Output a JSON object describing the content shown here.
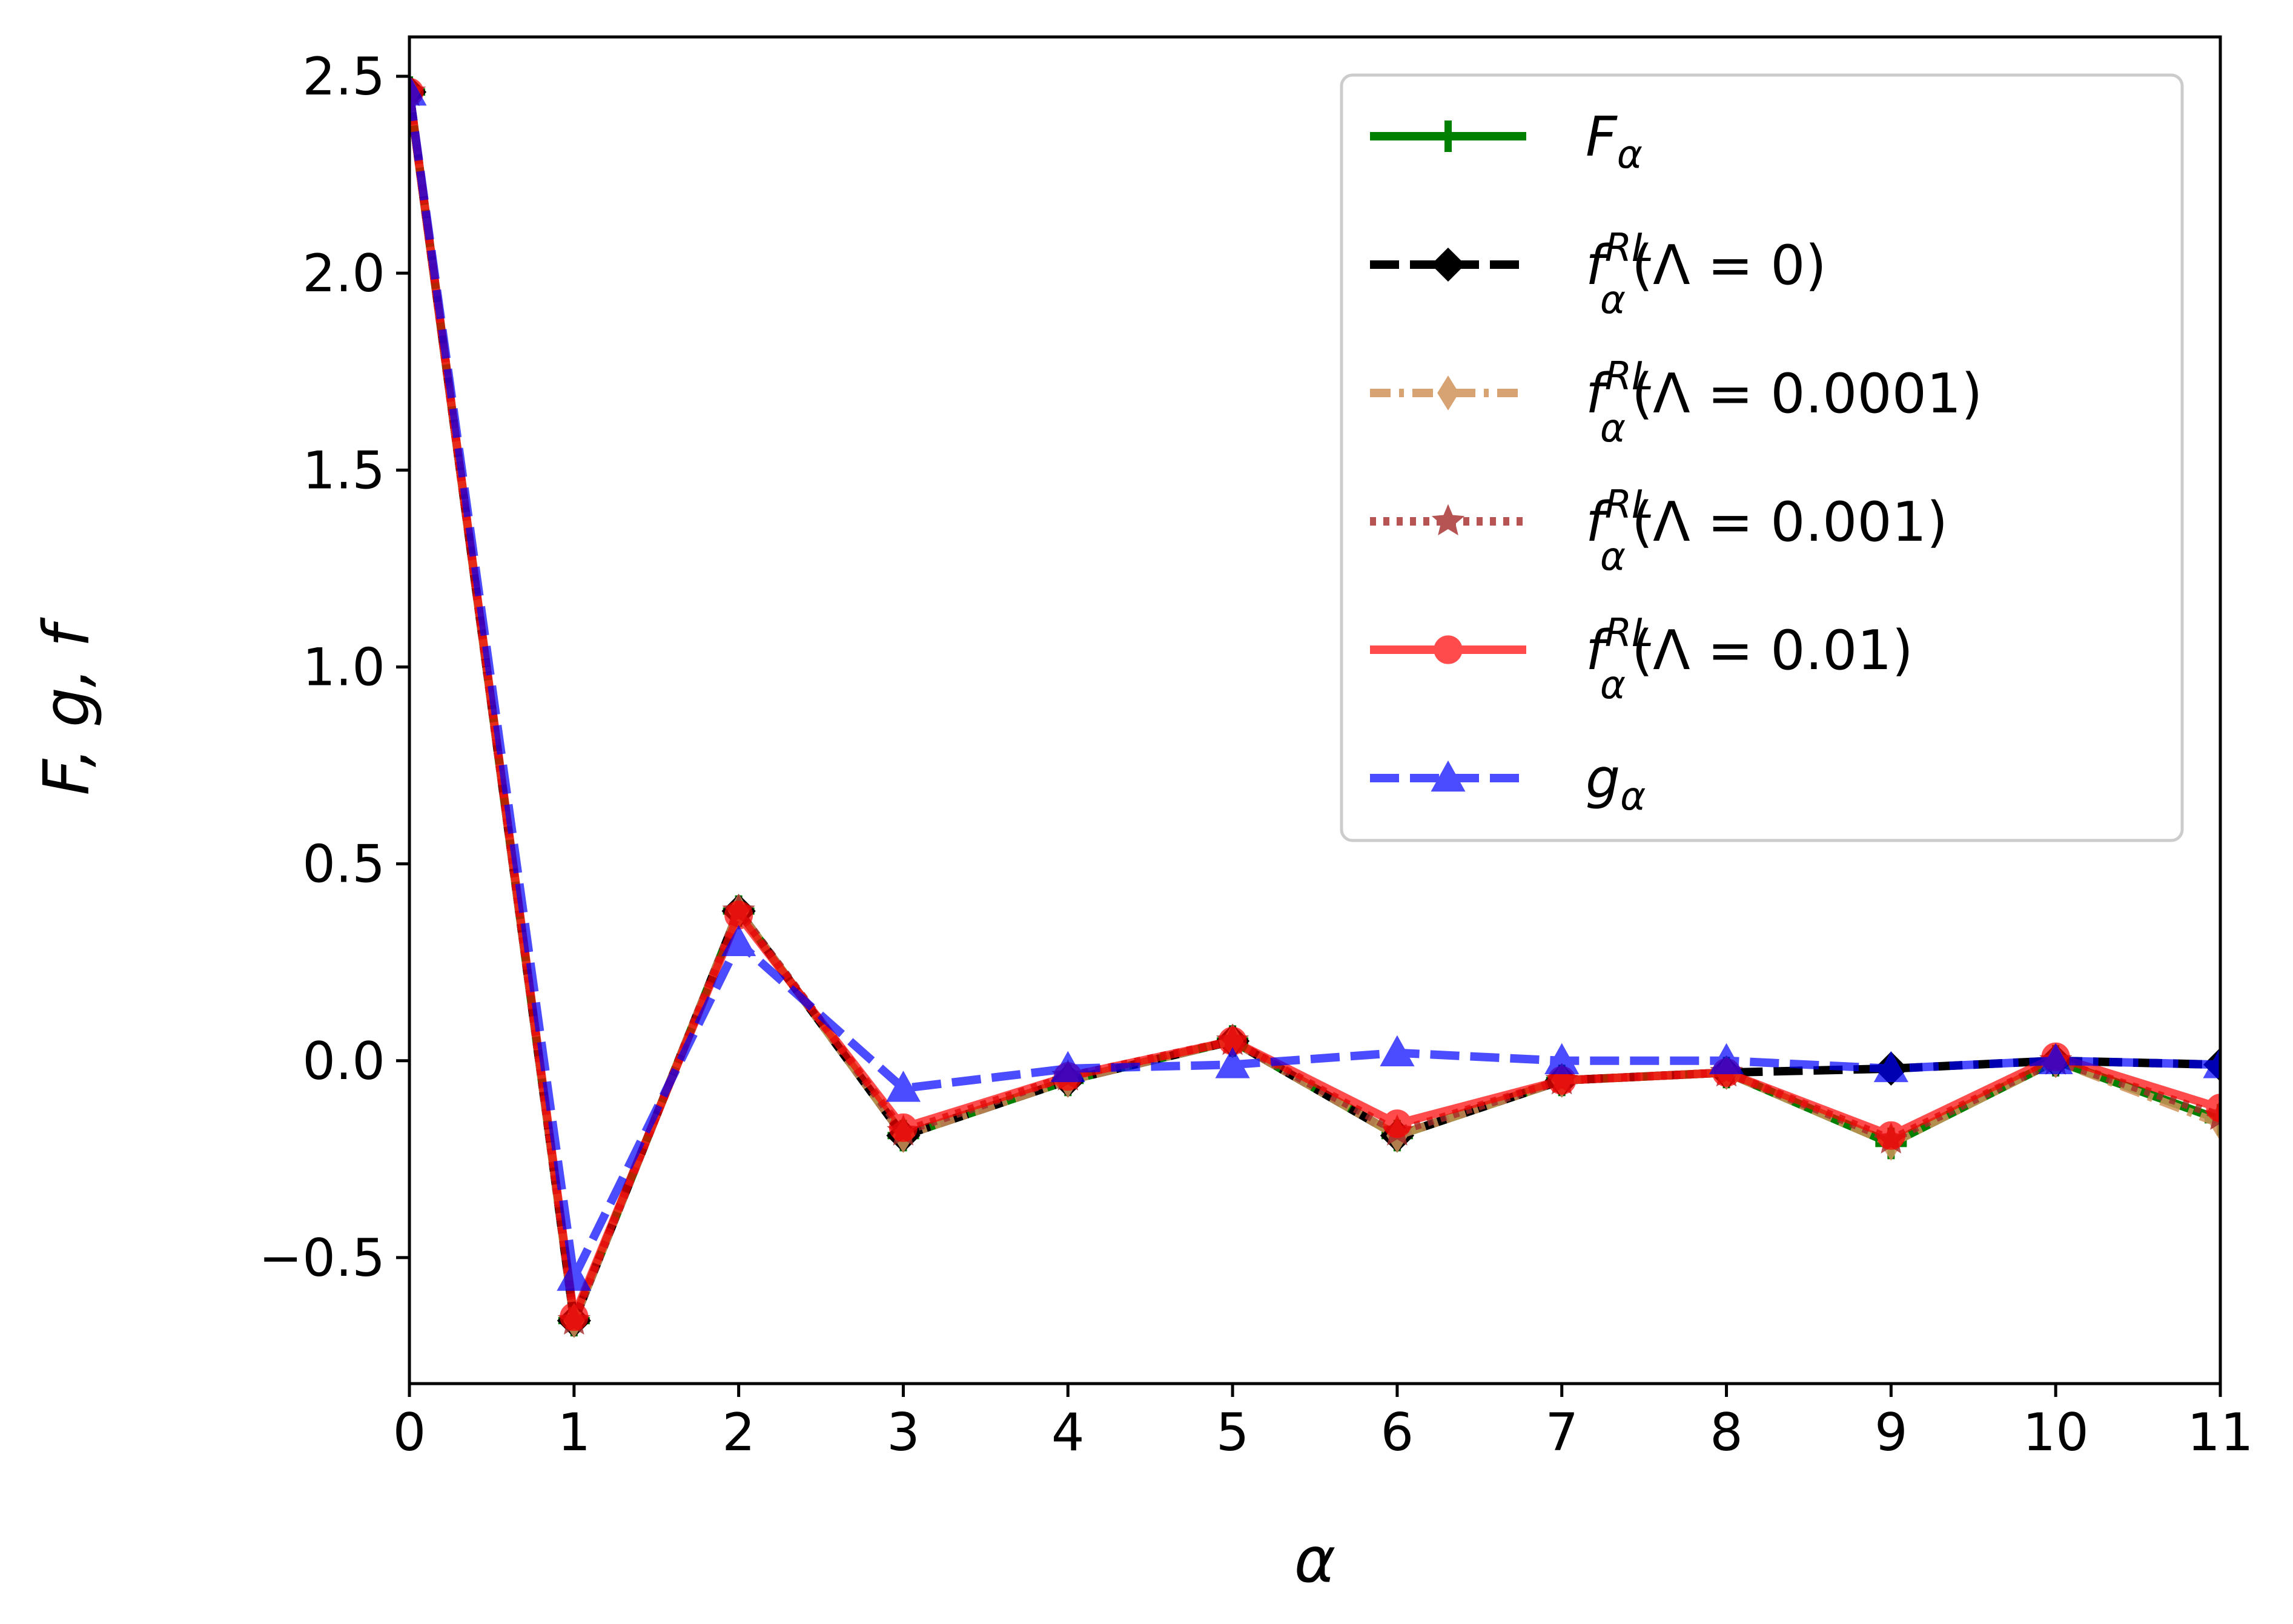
{
  "chart_data": {
    "type": "line",
    "xlabel": "α",
    "ylabel": "F, g, f",
    "xlim": [
      0,
      11
    ],
    "ylim": [
      -0.82,
      2.6
    ],
    "xticks": [
      0,
      1,
      2,
      3,
      4,
      5,
      6,
      7,
      8,
      9,
      10,
      11
    ],
    "yticks": [
      -0.5,
      0.0,
      0.5,
      1.0,
      1.5,
      2.0,
      2.5
    ],
    "ytick_labels": [
      "−0.5",
      "0.0",
      "0.5",
      "1.0",
      "1.5",
      "2.0",
      "2.5"
    ],
    "grid": false,
    "legend_position": "upper-right",
    "x": [
      0,
      1,
      2,
      3,
      4,
      5,
      6,
      7,
      8,
      9,
      10,
      11
    ],
    "series": [
      {
        "name": "F_α",
        "legend_base": "F",
        "legend_sub": "α",
        "legend_sup": "",
        "legend_rest": "",
        "color": "#008000",
        "style": "solid",
        "marker": "plus",
        "opacity": 1.0,
        "values": [
          2.46,
          -0.66,
          0.38,
          -0.19,
          -0.05,
          0.05,
          -0.19,
          -0.05,
          -0.03,
          -0.21,
          0.0,
          -0.15
        ]
      },
      {
        "name": "f_α^RL(Λ = 0)",
        "legend_base": "f",
        "legend_sub": "α",
        "legend_sup": "RL",
        "legend_rest": "(Λ = 0)",
        "color": "#000000",
        "style": "dashed",
        "marker": "diamond",
        "opacity": 1.0,
        "values": [
          2.46,
          -0.66,
          0.38,
          -0.19,
          -0.05,
          0.05,
          -0.19,
          -0.05,
          -0.03,
          -0.02,
          0.0,
          -0.01
        ]
      },
      {
        "name": "f_α^RL(Λ = 0.0001)",
        "legend_base": "f",
        "legend_sub": "α",
        "legend_sup": "RL",
        "legend_rest": "(Λ = 0.0001)",
        "color": "#d2935a",
        "style": "dashdot",
        "marker": "thin-diamond",
        "opacity": 0.85,
        "values": [
          2.46,
          -0.66,
          0.38,
          -0.19,
          -0.05,
          0.05,
          -0.19,
          -0.05,
          -0.03,
          -0.21,
          0.0,
          -0.16
        ]
      },
      {
        "name": "f_α^RL(Λ = 0.001)",
        "legend_base": "f",
        "legend_sub": "α",
        "legend_sup": "RL",
        "legend_rest": "(Λ = 0.001)",
        "color": "#a52a2a",
        "style": "dotted",
        "marker": "star",
        "opacity": 0.8,
        "values": [
          2.46,
          -0.66,
          0.38,
          -0.18,
          -0.04,
          0.05,
          -0.18,
          -0.05,
          -0.03,
          -0.2,
          0.0,
          -0.14
        ]
      },
      {
        "name": "f_α^RL(Λ = 0.01)",
        "legend_base": "f",
        "legend_sub": "α",
        "legend_sup": "RL",
        "legend_rest": "(Λ = 0.01)",
        "color": "#ff0000",
        "style": "solid",
        "marker": "circle",
        "opacity": 0.7,
        "values": [
          2.46,
          -0.65,
          0.37,
          -0.17,
          -0.04,
          0.05,
          -0.16,
          -0.05,
          -0.03,
          -0.19,
          0.01,
          -0.12
        ]
      },
      {
        "name": "g_α",
        "legend_base": "g",
        "legend_sub": "α",
        "legend_sup": "",
        "legend_rest": "",
        "color": "#0000ff",
        "style": "dashed",
        "marker": "triangle",
        "opacity": 0.7,
        "values": [
          2.46,
          -0.55,
          0.3,
          -0.07,
          -0.02,
          -0.01,
          0.02,
          0.0,
          0.0,
          -0.02,
          0.0,
          -0.01
        ]
      }
    ]
  }
}
